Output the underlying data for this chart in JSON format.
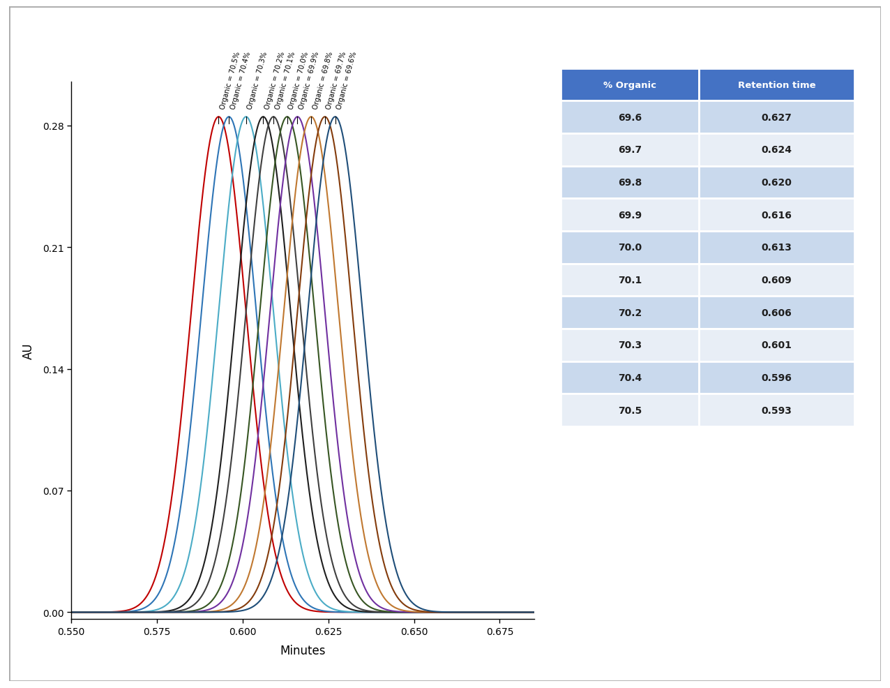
{
  "peaks": [
    {
      "label": "Organic = 70.5%",
      "retention": 0.593,
      "color": "#C00000",
      "sigma": 0.008
    },
    {
      "label": "Organic = 70.4%",
      "retention": 0.596,
      "color": "#2E75B6",
      "sigma": 0.008
    },
    {
      "label": "Organic = 70.3%",
      "retention": 0.601,
      "color": "#4BACC6",
      "sigma": 0.008
    },
    {
      "label": "Organic = 70.2%",
      "retention": 0.606,
      "color": "#1F1F1F",
      "sigma": 0.008
    },
    {
      "label": "Organic = 70.1%",
      "retention": 0.609,
      "color": "#404040",
      "sigma": 0.008
    },
    {
      "label": "Organic = 70.0%",
      "retention": 0.613,
      "color": "#375623",
      "sigma": 0.008
    },
    {
      "label": "Organic = 69.9%",
      "retention": 0.616,
      "color": "#7030A0",
      "sigma": 0.008
    },
    {
      "label": "Organic = 69.8%",
      "retention": 0.62,
      "color": "#C07830",
      "sigma": 0.008
    },
    {
      "label": "Organic = 69.7%",
      "retention": 0.624,
      "color": "#843C0C",
      "sigma": 0.008
    },
    {
      "label": "Organic = 69.6%",
      "retention": 0.627,
      "color": "#1F4E79",
      "sigma": 0.008
    }
  ],
  "amplitude": 0.285,
  "xmin": 0.55,
  "xmax": 0.685,
  "ymin": -0.004,
  "ymax": 0.305,
  "xlabel": "Minutes",
  "ylabel": "AU",
  "yticks": [
    0.0,
    0.07,
    0.14,
    0.21,
    0.28
  ],
  "xticks": [
    0.55,
    0.575,
    0.6,
    0.625,
    0.65,
    0.675
  ],
  "table_header_color": "#4472C4",
  "table_header_text_color": "#FFFFFF",
  "table_even_color": "#C9D9ED",
  "table_odd_color": "#E8EEF6",
  "table_data": [
    [
      "69.6",
      "0.627"
    ],
    [
      "69.7",
      "0.624"
    ],
    [
      "69.8",
      "0.620"
    ],
    [
      "69.9",
      "0.616"
    ],
    [
      "70.0",
      "0.613"
    ],
    [
      "70.1",
      "0.609"
    ],
    [
      "70.2",
      "0.606"
    ],
    [
      "70.3",
      "0.601"
    ],
    [
      "70.4",
      "0.596"
    ],
    [
      "70.5",
      "0.593"
    ]
  ],
  "table_col_headers": [
    "% Organic",
    "Retention time"
  ],
  "bg_color": "#FFFFFF",
  "plot_bg_color": "#FFFFFF",
  "border_color": "#AAAAAA"
}
